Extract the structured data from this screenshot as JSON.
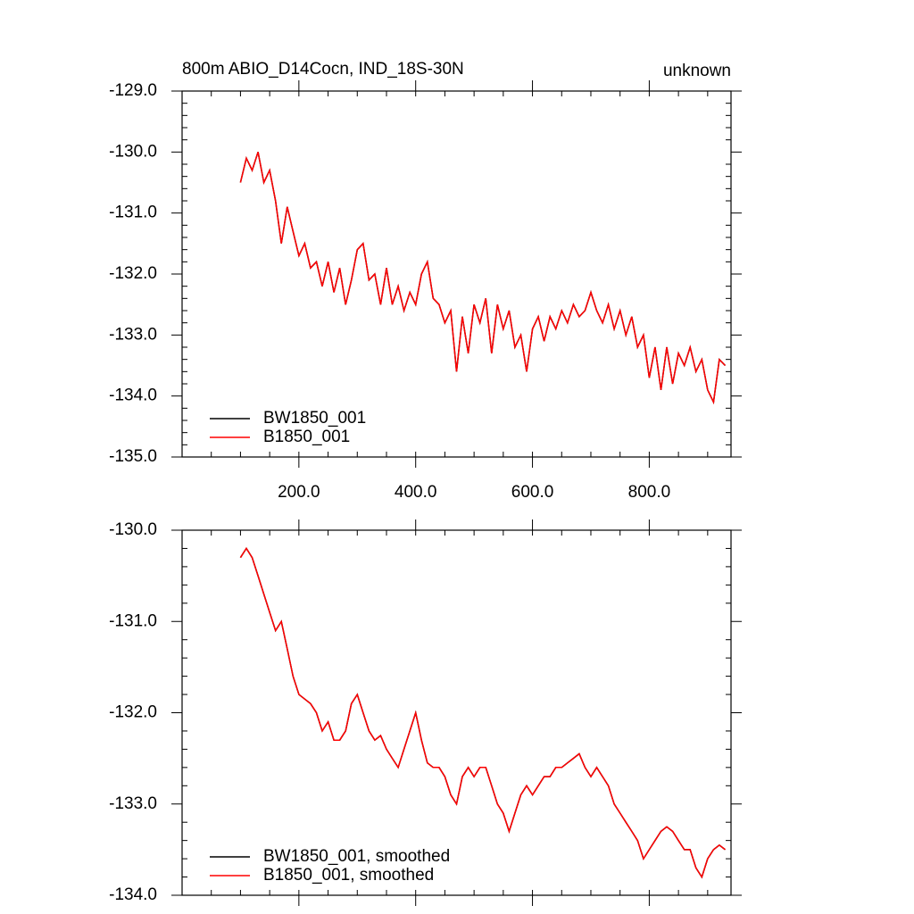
{
  "chart_data": [
    {
      "type": "line",
      "title": "800m ABIO_D14Cocn, IND_18S-30N",
      "right_title": "unknown",
      "x": [
        100,
        110,
        120,
        130,
        140,
        150,
        160,
        170,
        180,
        190,
        200,
        210,
        220,
        230,
        240,
        250,
        260,
        270,
        280,
        290,
        300,
        310,
        320,
        330,
        340,
        350,
        360,
        370,
        380,
        390,
        400,
        410,
        420,
        430,
        440,
        450,
        460,
        470,
        480,
        490,
        500,
        510,
        520,
        530,
        540,
        550,
        560,
        570,
        580,
        590,
        600,
        610,
        620,
        630,
        640,
        650,
        660,
        670,
        680,
        690,
        700,
        710,
        720,
        730,
        740,
        750,
        760,
        770,
        780,
        790,
        800,
        810,
        820,
        830,
        840,
        850,
        860,
        870,
        880,
        890,
        900,
        910,
        920,
        930
      ],
      "series": [
        {
          "name": "BW1850_001",
          "color": "#000000",
          "values": [
            -130.5,
            -130.1,
            -130.3,
            -130.0,
            -130.5,
            -130.3,
            -130.8,
            -131.5,
            -130.9,
            -131.3,
            -131.7,
            -131.5,
            -131.9,
            -131.8,
            -132.2,
            -131.8,
            -132.3,
            -131.9,
            -132.5,
            -132.1,
            -131.6,
            -131.5,
            -132.1,
            -132.0,
            -132.5,
            -131.9,
            -132.5,
            -132.2,
            -132.6,
            -132.3,
            -132.5,
            -132.0,
            -131.8,
            -132.4,
            -132.5,
            -132.8,
            -132.6,
            -133.6,
            -132.7,
            -133.3,
            -132.5,
            -132.8,
            -132.4,
            -133.3,
            -132.5,
            -132.9,
            -132.6,
            -133.2,
            -133.0,
            -133.6,
            -132.9,
            -132.7,
            -133.1,
            -132.7,
            -132.9,
            -132.6,
            -132.8,
            -132.5,
            -132.7,
            -132.6,
            -132.3,
            -132.6,
            -132.8,
            -132.5,
            -132.9,
            -132.6,
            -133.0,
            -132.7,
            -133.2,
            -133.0,
            -133.7,
            -133.2,
            -133.9,
            -133.2,
            -133.8,
            -133.3,
            -133.5,
            -133.2,
            -133.6,
            -133.4,
            -133.9,
            -134.1,
            -133.4,
            -133.5
          ]
        },
        {
          "name": "B1850_001",
          "color": "#ff0000",
          "values": [
            -130.5,
            -130.1,
            -130.3,
            -130.0,
            -130.5,
            -130.3,
            -130.8,
            -131.5,
            -130.9,
            -131.3,
            -131.7,
            -131.5,
            -131.9,
            -131.8,
            -132.2,
            -131.8,
            -132.3,
            -131.9,
            -132.5,
            -132.1,
            -131.6,
            -131.5,
            -132.1,
            -132.0,
            -132.5,
            -131.9,
            -132.5,
            -132.2,
            -132.6,
            -132.3,
            -132.5,
            -132.0,
            -131.8,
            -132.4,
            -132.5,
            -132.8,
            -132.6,
            -133.6,
            -132.7,
            -133.3,
            -132.5,
            -132.8,
            -132.4,
            -133.3,
            -132.5,
            -132.9,
            -132.6,
            -133.2,
            -133.0,
            -133.6,
            -132.9,
            -132.7,
            -133.1,
            -132.7,
            -132.9,
            -132.6,
            -132.8,
            -132.5,
            -132.7,
            -132.6,
            -132.3,
            -132.6,
            -132.8,
            -132.5,
            -132.9,
            -132.6,
            -133.0,
            -132.7,
            -133.2,
            -133.0,
            -133.7,
            -133.2,
            -133.9,
            -133.2,
            -133.8,
            -133.3,
            -133.5,
            -133.2,
            -133.6,
            -133.4,
            -133.9,
            -134.1,
            -133.4,
            -133.5
          ]
        }
      ],
      "xlim": [
        0,
        940
      ],
      "xticks": [
        {
          "value": 200,
          "label": "200.0"
        },
        {
          "value": 400,
          "label": "400.0"
        },
        {
          "value": 600,
          "label": "600.0"
        },
        {
          "value": 800,
          "label": "800.0"
        }
      ],
      "ylim": [
        -135,
        -129
      ],
      "yticks": [
        {
          "value": -135,
          "label": "-135.0"
        },
        {
          "value": -134,
          "label": "-134.0"
        },
        {
          "value": -133,
          "label": "-133.0"
        },
        {
          "value": -132,
          "label": "-132.0"
        },
        {
          "value": -131,
          "label": "-131.0"
        },
        {
          "value": -130,
          "label": "-130.0"
        },
        {
          "value": -129,
          "label": "-129.0"
        }
      ],
      "legend": "lower left"
    },
    {
      "type": "line",
      "x": [
        100,
        110,
        120,
        130,
        140,
        150,
        160,
        170,
        180,
        190,
        200,
        210,
        220,
        230,
        240,
        250,
        260,
        270,
        280,
        290,
        300,
        310,
        320,
        330,
        340,
        350,
        360,
        370,
        380,
        390,
        400,
        410,
        420,
        430,
        440,
        450,
        460,
        470,
        480,
        490,
        500,
        510,
        520,
        530,
        540,
        550,
        560,
        570,
        580,
        590,
        600,
        610,
        620,
        630,
        640,
        650,
        660,
        670,
        680,
        690,
        700,
        710,
        720,
        730,
        740,
        750,
        760,
        770,
        780,
        790,
        800,
        810,
        820,
        830,
        840,
        850,
        860,
        870,
        880,
        890,
        900,
        910,
        920,
        930
      ],
      "series": [
        {
          "name": "BW1850_001, smoothed",
          "color": "#000000",
          "values": [
            -130.3,
            -130.2,
            -130.3,
            -130.5,
            -130.7,
            -130.9,
            -131.1,
            -131.0,
            -131.3,
            -131.6,
            -131.8,
            -131.85,
            -131.9,
            -132.0,
            -132.2,
            -132.1,
            -132.3,
            -132.3,
            -132.2,
            -131.9,
            -131.8,
            -132.0,
            -132.2,
            -132.3,
            -132.25,
            -132.4,
            -132.5,
            -132.6,
            -132.4,
            -132.2,
            -132.0,
            -132.3,
            -132.55,
            -132.6,
            -132.6,
            -132.7,
            -132.9,
            -133.0,
            -132.7,
            -132.6,
            -132.7,
            -132.6,
            -132.6,
            -132.8,
            -133.0,
            -133.1,
            -133.3,
            -133.1,
            -132.9,
            -132.8,
            -132.9,
            -132.8,
            -132.7,
            -132.7,
            -132.6,
            -132.6,
            -132.55,
            -132.5,
            -132.45,
            -132.6,
            -132.7,
            -132.6,
            -132.7,
            -132.8,
            -133.0,
            -133.1,
            -133.2,
            -133.3,
            -133.4,
            -133.6,
            -133.5,
            -133.4,
            -133.3,
            -133.25,
            -133.3,
            -133.4,
            -133.5,
            -133.5,
            -133.7,
            -133.8,
            -133.6,
            -133.5,
            -133.45,
            -133.5
          ]
        },
        {
          "name": "B1850_001, smoothed",
          "color": "#ff0000",
          "values": [
            -130.3,
            -130.2,
            -130.3,
            -130.5,
            -130.7,
            -130.9,
            -131.1,
            -131.0,
            -131.3,
            -131.6,
            -131.8,
            -131.85,
            -131.9,
            -132.0,
            -132.2,
            -132.1,
            -132.3,
            -132.3,
            -132.2,
            -131.9,
            -131.8,
            -132.0,
            -132.2,
            -132.3,
            -132.25,
            -132.4,
            -132.5,
            -132.6,
            -132.4,
            -132.2,
            -132.0,
            -132.3,
            -132.55,
            -132.6,
            -132.6,
            -132.7,
            -132.9,
            -133.0,
            -132.7,
            -132.6,
            -132.7,
            -132.6,
            -132.6,
            -132.8,
            -133.0,
            -133.1,
            -133.3,
            -133.1,
            -132.9,
            -132.8,
            -132.9,
            -132.8,
            -132.7,
            -132.7,
            -132.6,
            -132.6,
            -132.55,
            -132.5,
            -132.45,
            -132.6,
            -132.7,
            -132.6,
            -132.7,
            -132.8,
            -133.0,
            -133.1,
            -133.2,
            -133.3,
            -133.4,
            -133.6,
            -133.5,
            -133.4,
            -133.3,
            -133.25,
            -133.3,
            -133.4,
            -133.5,
            -133.5,
            -133.7,
            -133.8,
            -133.6,
            -133.5,
            -133.45,
            -133.5
          ]
        }
      ],
      "xlim": [
        0,
        940
      ],
      "xticks": [
        200,
        400,
        600,
        800
      ],
      "xtick_labels": false,
      "ylim": [
        -134,
        -130
      ],
      "yticks": [
        {
          "value": -134,
          "label": "-134.0"
        },
        {
          "value": -133,
          "label": "-133.0"
        },
        {
          "value": -132,
          "label": "-132.0"
        },
        {
          "value": -131,
          "label": "-131.0"
        },
        {
          "value": -130,
          "label": "-130.0"
        }
      ],
      "legend": "lower left"
    }
  ]
}
